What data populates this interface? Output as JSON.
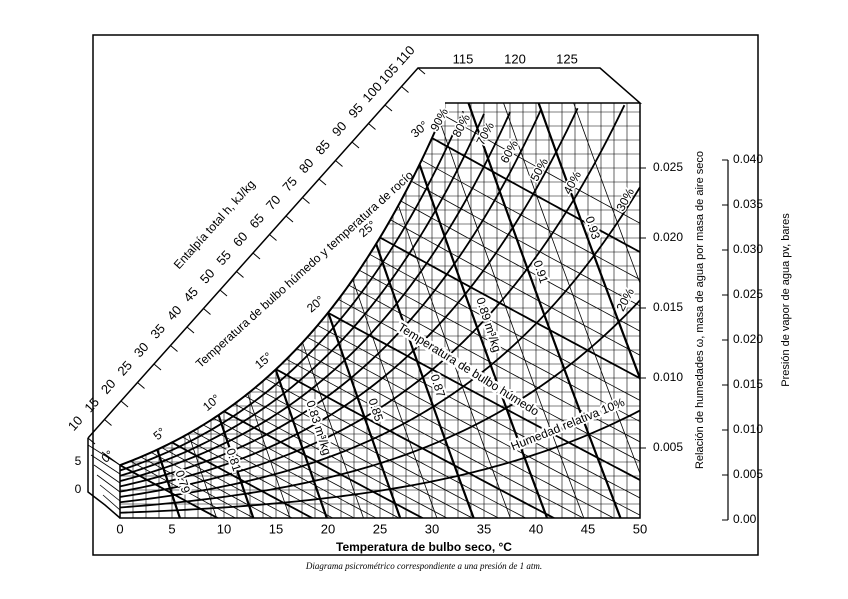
{
  "chart": {
    "enthalpy_label": "Entalpía total h, kJ/kg",
    "enthalpy_ticks": [
      "10",
      "15",
      "20",
      "25",
      "30",
      "35",
      "40",
      "45",
      "50",
      "55",
      "60",
      "65",
      "70",
      "75",
      "80",
      "85",
      "90",
      "95",
      "100",
      "105",
      "110"
    ],
    "enthalpy_top_ticks": [
      "115",
      "120",
      "125"
    ],
    "dew_label": "Temperatura de bulbo húmedo y temperatura de rocío",
    "saturation_temps": [
      "0°",
      "5°",
      "10°",
      "15°",
      "20°",
      "25°",
      "30°"
    ],
    "left_ticks": [
      "5",
      "0"
    ],
    "x_ticks": [
      "0",
      "5",
      "10",
      "15",
      "20",
      "25",
      "30",
      "35",
      "40",
      "45",
      "50"
    ],
    "x_label": "Temperatura de bulbo seco, °C",
    "w_ticks": [
      "0.005",
      "0.010",
      "0.015",
      "0.020",
      "0.025"
    ],
    "w_label": "Relación de humedades ω, masa de agua por masa de aire seco",
    "p_ticks": [
      "0.00",
      "0.005",
      "0.010",
      "0.015",
      "0.020",
      "0.025",
      "0.030",
      "0.035",
      "0.040"
    ],
    "p_label": "Presión de vapor de agua pv, bares",
    "rh_labels": [
      "90%",
      "80%",
      "70%",
      "60%",
      "50%",
      "40%",
      "30%",
      "20%"
    ],
    "rh10_label": "Humedad relativa 10%",
    "wet_bulb_label": "Temperatura de bulbo húmedo",
    "volume_labels": [
      "0.79",
      "0.81",
      "0.83 m³/kg",
      "0.85",
      "0.87",
      "0.89 m³/kg",
      "0.91",
      "0.93"
    ],
    "caption": "Diagrama psicrométrico correspondiente a una presión de 1 atm."
  }
}
